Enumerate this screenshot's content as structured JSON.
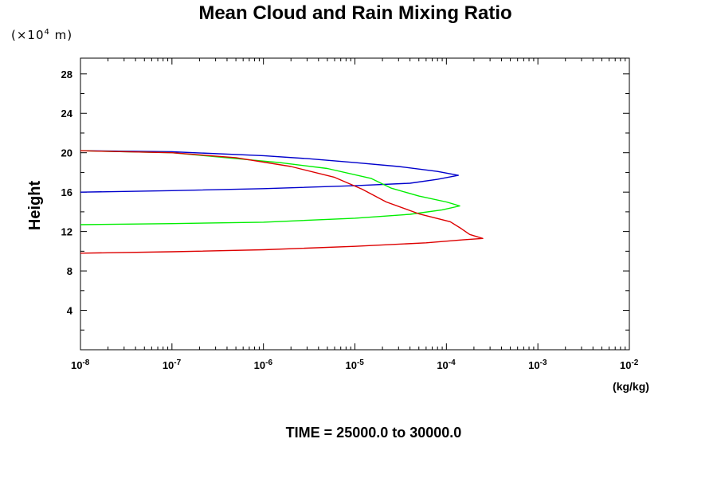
{
  "chart_data": {
    "type": "line",
    "title": "Mean Cloud and Rain Mixing Ratio",
    "y_unit_note_prefix": "(×10",
    "y_unit_note_exp": "4",
    "y_unit_note_suffix": " m)",
    "ylabel": "Height",
    "xlabel": "(kg/kg)",
    "footer": "TIME = 25000.0 to 30000.0",
    "xscale": "log",
    "xlim_exp": [
      -8,
      -2
    ],
    "ylim": [
      0,
      29.6
    ],
    "x_ticks": [
      {
        "base": "10",
        "exp": "-8",
        "value": 1e-08
      },
      {
        "base": "10",
        "exp": "-7",
        "value": 1e-07
      },
      {
        "base": "10",
        "exp": "-6",
        "value": 1e-06
      },
      {
        "base": "10",
        "exp": "-5",
        "value": 1e-05
      },
      {
        "base": "10",
        "exp": "-4",
        "value": 0.0001
      },
      {
        "base": "10",
        "exp": "-3",
        "value": 0.001
      },
      {
        "base": "10",
        "exp": "-2",
        "value": 0.01
      }
    ],
    "y_ticks": [
      "4",
      "8",
      "12",
      "16",
      "20",
      "24",
      "28"
    ],
    "y_tick_values": [
      4,
      8,
      12,
      16,
      20,
      24,
      28
    ],
    "grid": false,
    "legend": "none",
    "series": [
      {
        "color": "#0000cc",
        "points": [
          [
            1e-08,
            16.0
          ],
          [
            1e-07,
            16.15
          ],
          [
            1e-06,
            16.35
          ],
          [
            1e-05,
            16.65
          ],
          [
            4e-05,
            16.9
          ],
          [
            8e-05,
            17.3
          ],
          [
            0.000135,
            17.7
          ],
          [
            8e-05,
            18.1
          ],
          [
            3e-05,
            18.6
          ],
          [
            1e-05,
            19.0
          ],
          [
            3e-06,
            19.4
          ],
          [
            1e-06,
            19.7
          ],
          [
            1e-07,
            20.1
          ],
          [
            1e-08,
            20.2
          ]
        ]
      },
      {
        "color": "#00ee00",
        "points": [
          [
            1e-08,
            12.7
          ],
          [
            1e-07,
            12.8
          ],
          [
            1e-06,
            12.95
          ],
          [
            1e-05,
            13.35
          ],
          [
            4e-05,
            13.75
          ],
          [
            9e-05,
            14.2
          ],
          [
            0.00014,
            14.6
          ],
          [
            0.0001,
            15.0
          ],
          [
            5e-05,
            15.6
          ],
          [
            2.5e-05,
            16.4
          ],
          [
            1.5e-05,
            17.4
          ],
          [
            5e-06,
            18.4
          ],
          [
            1.5e-06,
            19.0
          ],
          [
            1e-07,
            20.0
          ],
          [
            1e-08,
            20.2
          ]
        ]
      },
      {
        "color": "#dd0000",
        "points": [
          [
            1e-08,
            9.8
          ],
          [
            1e-07,
            9.95
          ],
          [
            1e-06,
            10.15
          ],
          [
            1e-05,
            10.5
          ],
          [
            6e-05,
            10.85
          ],
          [
            0.00015,
            11.15
          ],
          [
            0.00025,
            11.3
          ],
          [
            0.00018,
            11.7
          ],
          [
            0.000145,
            12.3
          ],
          [
            0.00011,
            13.0
          ],
          [
            5e-05,
            13.8
          ],
          [
            2.2e-05,
            15.0
          ],
          [
            1.2e-05,
            16.3
          ],
          [
            6e-06,
            17.5
          ],
          [
            2e-06,
            18.6
          ],
          [
            5e-07,
            19.5
          ],
          [
            1e-07,
            20.0
          ],
          [
            1e-08,
            20.2
          ]
        ]
      }
    ]
  }
}
